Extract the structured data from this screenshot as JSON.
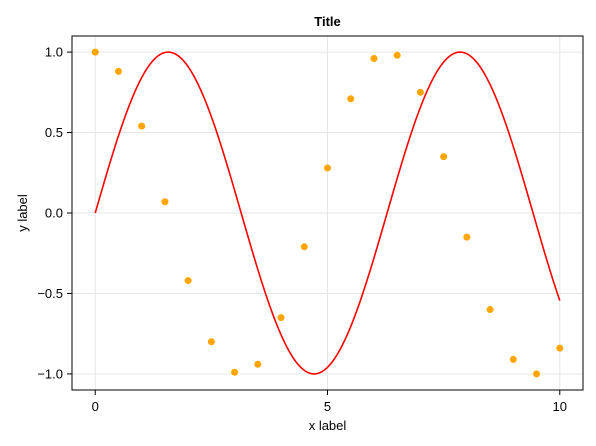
{
  "chart_data": {
    "type": "line",
    "title": "Title",
    "xlabel": "x label",
    "ylabel": "y label",
    "xlim": [
      -0.5,
      10.5
    ],
    "ylim": [
      -1.1,
      1.1
    ],
    "grid": true,
    "x_ticks": [
      0,
      5,
      10
    ],
    "x_tick_labels": [
      "0",
      "5",
      "10"
    ],
    "y_ticks": [
      -1.0,
      -0.5,
      0.0,
      0.5,
      1.0
    ],
    "y_tick_labels": [
      "−1.0",
      "−0.5",
      "0.0",
      "0.5",
      "1.0"
    ],
    "series": [
      {
        "type": "line",
        "color": "#ff0000",
        "function": "sin(x)",
        "x_range": [
          0,
          10
        ]
      },
      {
        "type": "scatter",
        "color": "#ffa500",
        "x": [
          0,
          0.5,
          1,
          1.5,
          2,
          2.5,
          3,
          3.5,
          4,
          4.5,
          5,
          5.5,
          6,
          6.5,
          7,
          7.5,
          8,
          8.5,
          9,
          9.5,
          10
        ],
        "y": [
          1.0,
          0.88,
          0.54,
          0.07,
          -0.42,
          -0.8,
          -0.99,
          -0.94,
          -0.65,
          -0.21,
          0.28,
          0.71,
          0.96,
          0.98,
          0.75,
          0.35,
          -0.15,
          -0.6,
          -0.91,
          -1.0,
          -0.84
        ]
      }
    ]
  }
}
